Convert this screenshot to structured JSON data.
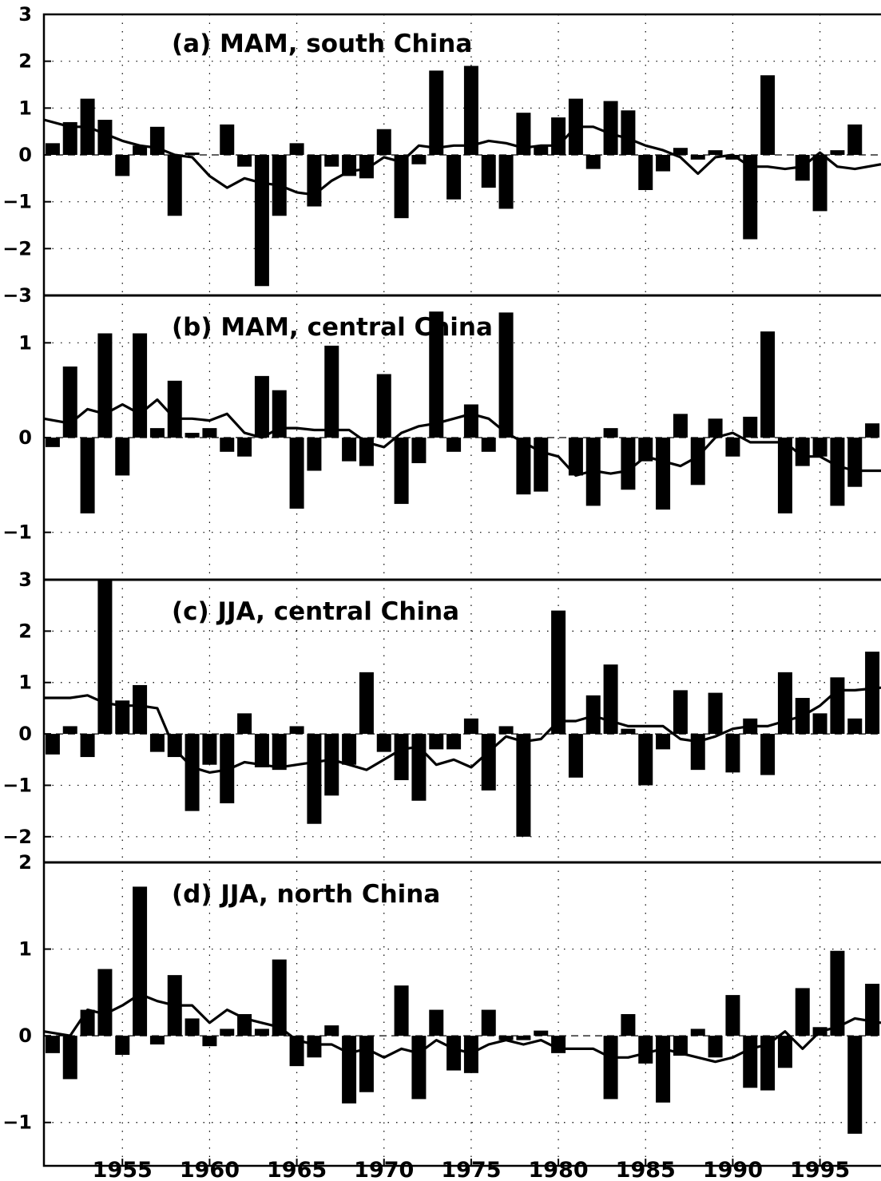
{
  "chart_data": [
    {
      "type": "bar",
      "title": "(a) MAM, south China",
      "ylim": [
        -3,
        3
      ],
      "yticks": [
        3,
        2,
        1,
        0,
        -1,
        -2,
        -3
      ],
      "grid": true,
      "x": [
        1951,
        1952,
        1953,
        1954,
        1955,
        1956,
        1957,
        1958,
        1959,
        1960,
        1961,
        1962,
        1963,
        1964,
        1965,
        1966,
        1967,
        1968,
        1969,
        1970,
        1971,
        1972,
        1973,
        1974,
        1975,
        1976,
        1977,
        1978,
        1979,
        1980,
        1981,
        1982,
        1983,
        1984,
        1985,
        1986,
        1987,
        1988,
        1989,
        1990,
        1991,
        1992,
        1993,
        1994,
        1995,
        1996,
        1997,
        1998
      ],
      "series": [
        {
          "kind": "bar",
          "values": [
            0.25,
            0.7,
            1.2,
            0.75,
            -0.45,
            0.2,
            0.6,
            -1.3,
            0.05,
            0.0,
            0.65,
            -0.25,
            -2.8,
            -1.3,
            0.25,
            -1.1,
            -0.25,
            -0.45,
            -0.5,
            0.55,
            -1.35,
            -0.2,
            1.8,
            -0.95,
            1.9,
            -0.7,
            -1.15,
            0.9,
            0.2,
            0.8,
            1.2,
            -0.3,
            1.15,
            0.95,
            -0.75,
            -0.35,
            0.15,
            -0.1,
            0.1,
            -0.1,
            -1.8,
            1.7,
            0.0,
            -0.55,
            -1.2,
            0.1,
            0.65,
            0.0
          ]
        },
        {
          "kind": "line",
          "values": [
            0.75,
            0.6,
            0.6,
            0.45,
            0.3,
            0.2,
            0.15,
            0.0,
            -0.05,
            -0.45,
            -0.7,
            -0.5,
            -0.6,
            -0.65,
            -0.8,
            -0.85,
            -0.55,
            -0.35,
            -0.3,
            -0.05,
            -0.15,
            0.2,
            0.15,
            0.2,
            0.2,
            0.3,
            0.25,
            0.15,
            0.2,
            0.2,
            0.6,
            0.6,
            0.45,
            0.35,
            0.2,
            0.1,
            -0.05,
            -0.4,
            -0.05,
            0.0,
            -0.25,
            -0.25,
            -0.3,
            -0.25,
            0.05,
            -0.25,
            -0.3,
            -0.2
          ]
        }
      ]
    },
    {
      "type": "bar",
      "title": "(b) MAM, central China",
      "ylim": [
        -1.5,
        1.5
      ],
      "yticks": [
        1,
        0,
        -1
      ],
      "grid": true,
      "x": [
        1951,
        1952,
        1953,
        1954,
        1955,
        1956,
        1957,
        1958,
        1959,
        1960,
        1961,
        1962,
        1963,
        1964,
        1965,
        1966,
        1967,
        1968,
        1969,
        1970,
        1971,
        1972,
        1973,
        1974,
        1975,
        1976,
        1977,
        1978,
        1979,
        1980,
        1981,
        1982,
        1983,
        1984,
        1985,
        1986,
        1987,
        1988,
        1989,
        1990,
        1991,
        1992,
        1993,
        1994,
        1995,
        1996,
        1997,
        1998
      ],
      "series": [
        {
          "kind": "bar",
          "values": [
            -0.1,
            0.75,
            -0.8,
            1.1,
            -0.4,
            1.1,
            0.1,
            0.6,
            0.05,
            0.1,
            -0.15,
            -0.2,
            0.65,
            0.5,
            -0.75,
            -0.35,
            0.97,
            -0.25,
            -0.3,
            0.67,
            -0.7,
            -0.27,
            1.33,
            -0.15,
            0.35,
            -0.15,
            1.32,
            -0.6,
            -0.57,
            0.0,
            -0.4,
            -0.72,
            0.1,
            -0.55,
            -0.25,
            -0.76,
            0.25,
            -0.5,
            0.2,
            -0.2,
            0.22,
            1.12,
            -0.8,
            -0.3,
            -0.2,
            -0.72,
            -0.52,
            0.15
          ]
        },
        {
          "kind": "line",
          "values": [
            0.2,
            0.15,
            0.3,
            0.25,
            0.35,
            0.25,
            0.4,
            0.2,
            0.2,
            0.18,
            0.25,
            0.05,
            0.0,
            0.1,
            0.1,
            0.08,
            0.08,
            0.08,
            -0.05,
            -0.1,
            0.05,
            0.12,
            0.15,
            0.2,
            0.25,
            0.2,
            0.05,
            -0.05,
            -0.15,
            -0.2,
            -0.4,
            -0.35,
            -0.38,
            -0.35,
            -0.2,
            -0.25,
            -0.3,
            -0.2,
            0.0,
            0.05,
            -0.05,
            -0.05,
            -0.05,
            -0.2,
            -0.2,
            -0.3,
            -0.35,
            -0.35
          ]
        }
      ]
    },
    {
      "type": "bar",
      "title": "(c) JJA, central China",
      "ylim": [
        -2.5,
        3
      ],
      "yticks": [
        3,
        2,
        1,
        0,
        -1,
        -2
      ],
      "grid": true,
      "x": [
        1951,
        1952,
        1953,
        1954,
        1955,
        1956,
        1957,
        1958,
        1959,
        1960,
        1961,
        1962,
        1963,
        1964,
        1965,
        1966,
        1967,
        1968,
        1969,
        1970,
        1971,
        1972,
        1973,
        1974,
        1975,
        1976,
        1977,
        1978,
        1979,
        1980,
        1981,
        1982,
        1983,
        1984,
        1985,
        1986,
        1987,
        1988,
        1989,
        1990,
        1991,
        1992,
        1993,
        1994,
        1995,
        1996,
        1997,
        1998
      ],
      "series": [
        {
          "kind": "bar",
          "values": [
            -0.4,
            0.15,
            -0.45,
            3.0,
            0.65,
            0.95,
            -0.35,
            -0.45,
            -1.5,
            -0.6,
            -1.35,
            0.4,
            -0.65,
            -0.7,
            0.15,
            -1.75,
            -1.2,
            -0.6,
            1.2,
            -0.35,
            -0.9,
            -1.3,
            -0.3,
            -0.3,
            0.3,
            -1.1,
            0.15,
            -2.0,
            0.0,
            2.4,
            -0.85,
            0.75,
            1.35,
            0.1,
            -1.0,
            -0.3,
            0.85,
            -0.7,
            0.8,
            -0.75,
            0.3,
            -0.8,
            1.2,
            0.7,
            0.4,
            1.1,
            0.3,
            1.6
          ]
        },
        {
          "kind": "line",
          "values": [
            0.7,
            0.7,
            0.75,
            0.6,
            0.55,
            0.55,
            0.5,
            -0.3,
            -0.65,
            -0.75,
            -0.7,
            -0.55,
            -0.6,
            -0.65,
            -0.6,
            -0.55,
            -0.5,
            -0.6,
            -0.7,
            -0.5,
            -0.3,
            -0.25,
            -0.6,
            -0.5,
            -0.65,
            -0.35,
            -0.05,
            -0.15,
            -0.1,
            0.25,
            0.25,
            0.35,
            0.25,
            0.15,
            0.15,
            0.15,
            -0.1,
            -0.15,
            -0.05,
            0.1,
            0.15,
            0.15,
            0.25,
            0.35,
            0.55,
            0.85,
            0.85,
            0.9
          ]
        }
      ]
    },
    {
      "type": "bar",
      "title": "(d) JJA, north China",
      "ylim": [
        -1.5,
        2
      ],
      "yticks": [
        2,
        1,
        0,
        -1
      ],
      "grid": true,
      "x": [
        1951,
        1952,
        1953,
        1954,
        1955,
        1956,
        1957,
        1958,
        1959,
        1960,
        1961,
        1962,
        1963,
        1964,
        1965,
        1966,
        1967,
        1968,
        1969,
        1970,
        1971,
        1972,
        1973,
        1974,
        1975,
        1976,
        1977,
        1978,
        1979,
        1980,
        1981,
        1982,
        1983,
        1984,
        1985,
        1986,
        1987,
        1988,
        1989,
        1990,
        1991,
        1992,
        1993,
        1994,
        1995,
        1996,
        1997,
        1998
      ],
      "series": [
        {
          "kind": "bar",
          "values": [
            -0.2,
            -0.5,
            0.3,
            0.77,
            -0.22,
            1.72,
            -0.1,
            0.7,
            0.2,
            -0.12,
            0.08,
            0.25,
            0.08,
            0.88,
            -0.35,
            -0.25,
            0.12,
            -0.78,
            -0.65,
            0.0,
            0.58,
            -0.73,
            0.3,
            -0.4,
            -0.43,
            0.3,
            -0.05,
            -0.05,
            0.06,
            -0.2,
            0.0,
            0.0,
            -0.73,
            0.25,
            -0.32,
            -0.77,
            -0.23,
            0.08,
            -0.25,
            0.47,
            -0.6,
            -0.63,
            -0.37,
            0.55,
            0.1,
            0.98,
            -1.13,
            0.6
          ]
        },
        {
          "kind": "line",
          "values": [
            0.05,
            0.0,
            0.3,
            0.25,
            0.35,
            0.48,
            0.4,
            0.35,
            0.35,
            0.15,
            0.3,
            0.2,
            0.15,
            0.1,
            -0.05,
            -0.1,
            -0.1,
            -0.2,
            -0.15,
            -0.25,
            -0.15,
            -0.2,
            -0.05,
            -0.15,
            -0.2,
            -0.1,
            -0.05,
            -0.1,
            -0.05,
            -0.15,
            -0.15,
            -0.15,
            -0.25,
            -0.25,
            -0.2,
            -0.15,
            -0.2,
            -0.25,
            -0.3,
            -0.25,
            -0.15,
            -0.1,
            0.05,
            -0.15,
            0.05,
            0.1,
            0.2,
            0.15
          ]
        }
      ]
    }
  ],
  "x_axis": {
    "range": [
      1950.5,
      1998.5
    ],
    "labels": [
      "1955",
      "1960",
      "1965",
      "1970",
      "1975",
      "1980",
      "1985",
      "1990",
      "1995"
    ],
    "label_years": [
      1955,
      1960,
      1965,
      1970,
      1975,
      1980,
      1985,
      1990,
      1995
    ]
  }
}
